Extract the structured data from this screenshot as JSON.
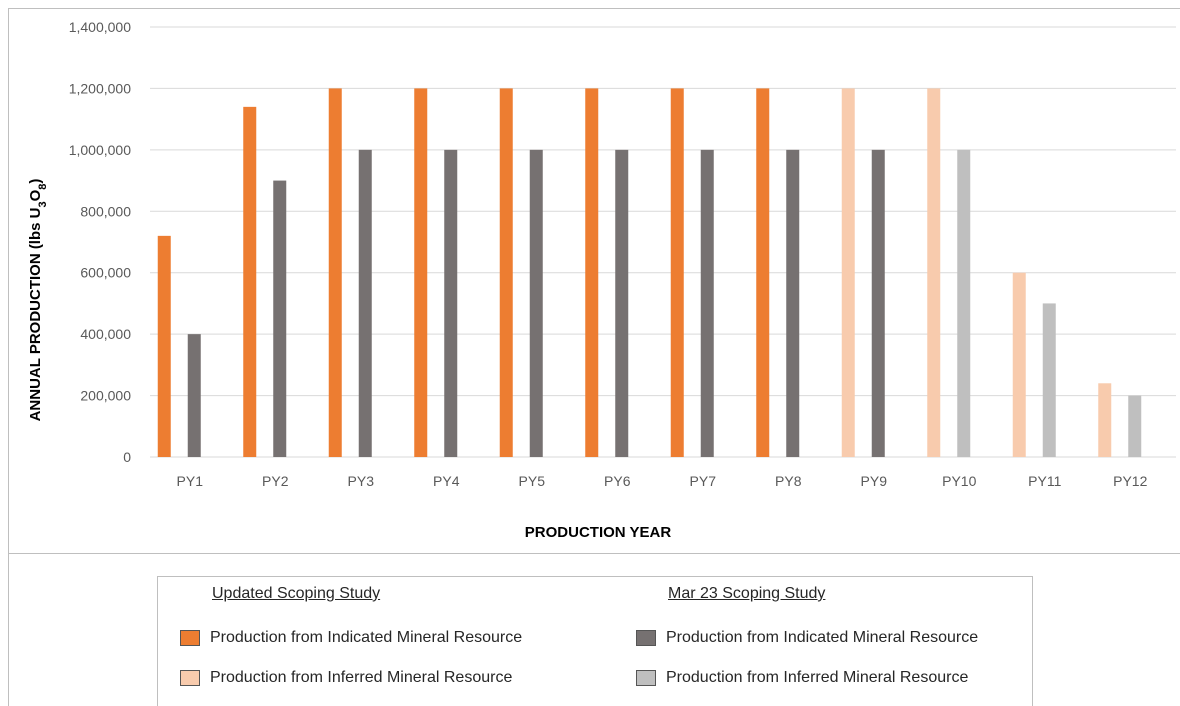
{
  "chart_data": {
    "type": "bar",
    "categories": [
      "PY1",
      "PY2",
      "PY3",
      "PY4",
      "PY5",
      "PY6",
      "PY7",
      "PY8",
      "PY9",
      "PY10",
      "PY11",
      "PY12"
    ],
    "series": [
      {
        "name": "Production from Indicated Mineral Resource",
        "group": "Updated Scoping Study",
        "values": [
          720000,
          1140000,
          1200000,
          1200000,
          1200000,
          1200000,
          1200000,
          1200000,
          0,
          0,
          0,
          0
        ],
        "color": "#ed7d31"
      },
      {
        "name": "Production from Inferred Mineral Resource",
        "group": "Updated Scoping Study",
        "values": [
          0,
          0,
          0,
          0,
          0,
          0,
          0,
          0,
          1200000,
          1200000,
          600000,
          240000
        ],
        "color": "#f8cbad"
      },
      {
        "name": "Production from Indicated Mineral Resource",
        "group": "Mar 23 Scoping Study",
        "values": [
          400000,
          900000,
          1000000,
          1000000,
          1000000,
          1000000,
          1000000,
          1000000,
          1000000,
          0,
          0,
          0
        ],
        "color": "#767171"
      },
      {
        "name": "Production from Inferred Mineral Resource",
        "group": "Mar 23 Scoping Study",
        "values": [
          0,
          0,
          0,
          0,
          0,
          0,
          0,
          0,
          0,
          1000000,
          500000,
          200000
        ],
        "color": "#bfbfbf"
      }
    ],
    "ylim": [
      0,
      1400000
    ],
    "yticks": [
      "0",
      "200,000",
      "400,000",
      "600,000",
      "800,000",
      "1,000,000",
      "1,200,000",
      "1,400,000"
    ],
    "xlabel": "PRODUCTION YEAR",
    "ylabel": "ANNUAL PRODUCTION (lbs U3O8)",
    "grid": true,
    "legend_position": "bottom"
  },
  "legend": {
    "group_updated": "Updated Scoping Study",
    "group_mar23": "Mar 23 Scoping Study",
    "items": [
      {
        "label": "Production from Indicated Mineral Resource",
        "color": "#ed7d31"
      },
      {
        "label": "Production from Inferred Mineral Resource",
        "color": "#f8cbad"
      },
      {
        "label": "Production from Indicated Mineral Resource",
        "color": "#767171"
      },
      {
        "label": "Production from Inferred Mineral Resource",
        "color": "#bfbfbf"
      }
    ]
  }
}
